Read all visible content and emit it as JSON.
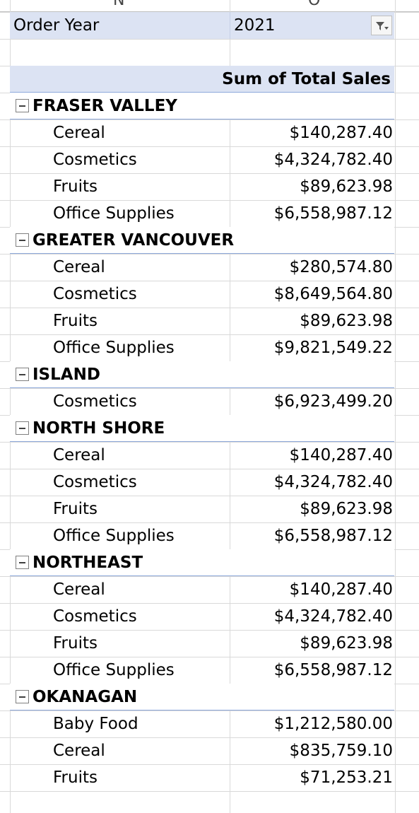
{
  "columns": [
    "N",
    "O"
  ],
  "filter": {
    "field_label": "Order Year",
    "field_value": "2021",
    "filter_icon": "filter-dropdown-icon"
  },
  "pivot_header": {
    "value_label": "Sum of Total Sales"
  },
  "groups": [
    {
      "name": "FRASER VALLEY",
      "items": [
        {
          "label": "Cereal",
          "value": "$140,287.40"
        },
        {
          "label": "Cosmetics",
          "value": "$4,324,782.40"
        },
        {
          "label": "Fruits",
          "value": "$89,623.98"
        },
        {
          "label": "Office Supplies",
          "value": "$6,558,987.12"
        }
      ]
    },
    {
      "name": "GREATER VANCOUVER",
      "items": [
        {
          "label": "Cereal",
          "value": "$280,574.80"
        },
        {
          "label": "Cosmetics",
          "value": "$8,649,564.80"
        },
        {
          "label": "Fruits",
          "value": "$89,623.98"
        },
        {
          "label": "Office Supplies",
          "value": "$9,821,549.22"
        }
      ]
    },
    {
      "name": "ISLAND",
      "items": [
        {
          "label": "Cosmetics",
          "value": "$6,923,499.20"
        }
      ]
    },
    {
      "name": "NORTH SHORE",
      "items": [
        {
          "label": "Cereal",
          "value": "$140,287.40"
        },
        {
          "label": "Cosmetics",
          "value": "$4,324,782.40"
        },
        {
          "label": "Fruits",
          "value": "$89,623.98"
        },
        {
          "label": "Office Supplies",
          "value": "$6,558,987.12"
        }
      ]
    },
    {
      "name": "NORTHEAST",
      "items": [
        {
          "label": "Cereal",
          "value": "$140,287.40"
        },
        {
          "label": "Cosmetics",
          "value": "$4,324,782.40"
        },
        {
          "label": "Fruits",
          "value": "$89,623.98"
        },
        {
          "label": "Office Supplies",
          "value": "$6,558,987.12"
        }
      ]
    },
    {
      "name": "OKANAGAN",
      "items": [
        {
          "label": "Baby Food",
          "value": "$1,212,580.00"
        },
        {
          "label": "Cereal",
          "value": "$835,759.10"
        },
        {
          "label": "Fruits",
          "value": "$71,253.21"
        }
      ]
    }
  ]
}
